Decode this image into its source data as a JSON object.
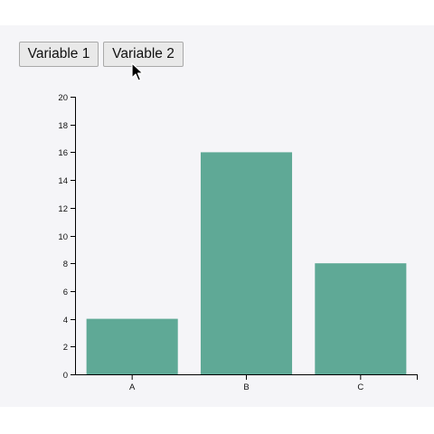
{
  "buttons": {
    "variable1_label": "Variable 1",
    "variable2_label": "Variable 2"
  },
  "colors": {
    "bar": "#5fa996",
    "axis": "#000000",
    "background": "#f5f5f8"
  },
  "chart_data": {
    "type": "bar",
    "categories": [
      "A",
      "B",
      "C"
    ],
    "values": [
      4,
      16,
      8
    ],
    "ylim": [
      0,
      20
    ],
    "yticks": [
      0,
      2,
      4,
      6,
      8,
      10,
      12,
      14,
      16,
      18,
      20
    ],
    "title": "",
    "xlabel": "",
    "ylabel": "",
    "grid": false
  }
}
